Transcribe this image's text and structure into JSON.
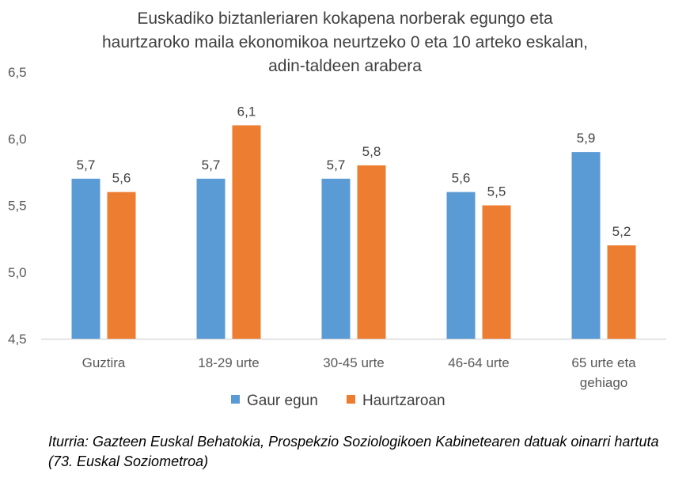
{
  "chart_data": {
    "type": "bar",
    "title_lines": [
      "Euskadiko biztanleriaren kokapena norberak egungo eta",
      "haurtzaroko maila ekonomikoa neurtzeko 0 eta 10 arteko eskalan,",
      "adin-taldeen arabera"
    ],
    "categories": [
      [
        "Guztira"
      ],
      [
        "18-29 urte"
      ],
      [
        "30-45 urte"
      ],
      [
        "46-64  urte"
      ],
      [
        "65 urte eta",
        "gehiago"
      ]
    ],
    "series": [
      {
        "name": "Gaur egun",
        "color": "#5B9BD5",
        "values": [
          5.7,
          5.7,
          5.7,
          5.6,
          5.9
        ],
        "labels": [
          "5,7",
          "5,7",
          "5,7",
          "5,6",
          "5,9"
        ]
      },
      {
        "name": "Haurtzaroan",
        "color": "#ED7D31",
        "values": [
          5.6,
          6.1,
          5.8,
          5.5,
          5.2
        ],
        "labels": [
          "5,6",
          "6,1",
          "5,8",
          "5,5",
          "5,2"
        ]
      }
    ],
    "ylim": [
      4.5,
      6.5
    ],
    "yticks": [
      4.5,
      5.0,
      5.5,
      6.0,
      6.5
    ],
    "ytick_labels": [
      "4,5",
      "5,0",
      "5,5",
      "6,0",
      "6,5"
    ],
    "grid": false,
    "legend_position": "bottom",
    "axis_color": "#D9D9D9"
  },
  "source_note": "Iturria: Gazteen Euskal Behatokia, Prospekzio Soziologikoen Kabinetearen datuak oinarri hartuta (73. Euskal Soziometroa)"
}
